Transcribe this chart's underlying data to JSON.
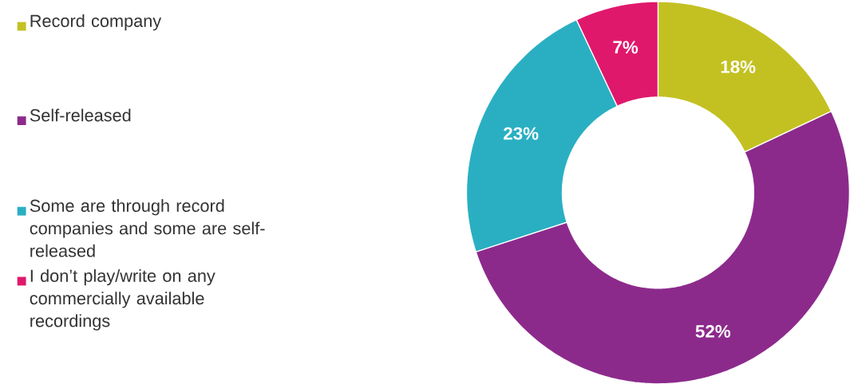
{
  "chart_data": {
    "type": "donut",
    "categories": [
      "Record company",
      "Self-released",
      "Some are through record companies and some are self-released",
      "I don’t play/write on any commercially available recordings"
    ],
    "values": [
      18,
      52,
      23,
      7
    ],
    "colors": [
      "#c3c122",
      "#8c2a8c",
      "#2aafc2",
      "#e0186c"
    ],
    "value_labels": [
      "18%",
      "52%",
      "23%",
      "7%"
    ],
    "legend": "left"
  }
}
